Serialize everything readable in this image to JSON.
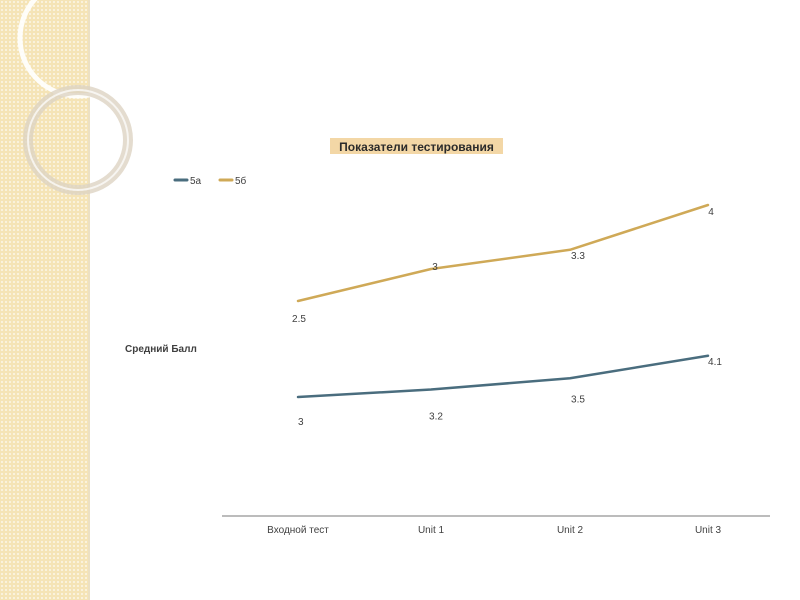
{
  "chart_data": {
    "type": "line",
    "title": "Показатели тестирования",
    "xlabel": "",
    "ylabel": "Средний Балл",
    "categories": [
      "Входной тест",
      "Unit 1",
      "Unit 2",
      "Unit 3"
    ],
    "series": [
      {
        "name": "5а",
        "values": [
          3,
          3.2,
          3.5,
          4.1
        ],
        "labels": [
          "3",
          "3.2",
          "3.5",
          "4.1"
        ],
        "color": "#4a6d7e"
      },
      {
        "name": "5б",
        "values": [
          2.5,
          3,
          3.3,
          4
        ],
        "labels": [
          "2.5",
          "3",
          "3.3",
          "4"
        ],
        "color": "#cfa957"
      }
    ],
    "legend_position": "top-left",
    "grid": false,
    "title_highlight_color": "#f3d7a6"
  }
}
